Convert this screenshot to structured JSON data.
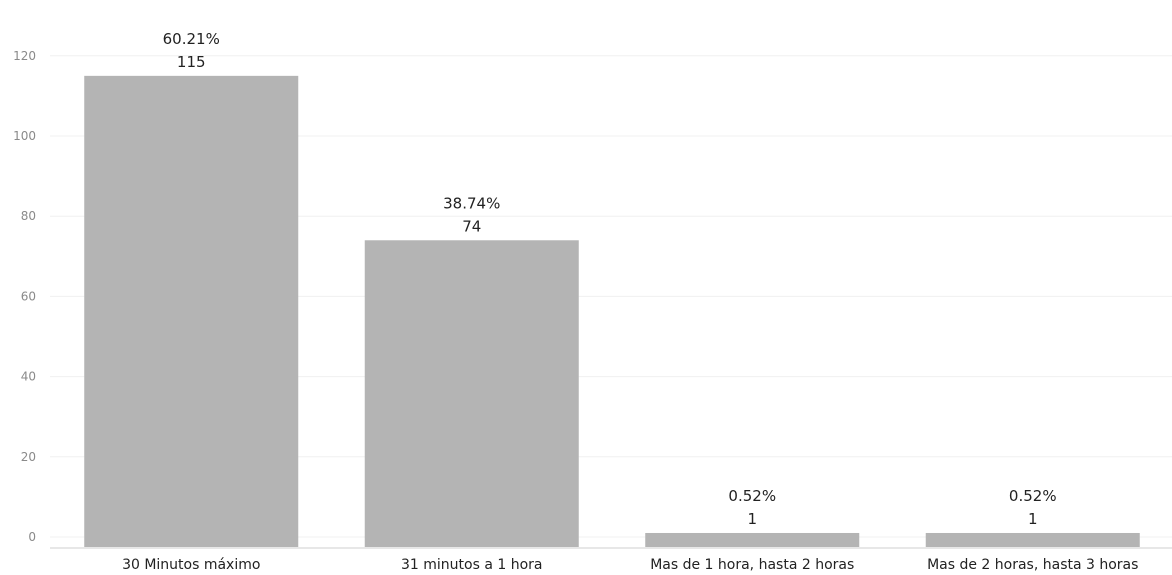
{
  "chart_data": {
    "type": "bar",
    "categories": [
      "30 Minutos máximo",
      "31 minutos a 1 hora",
      "Mas de 1 hora, hasta 2 horas",
      "Mas de 2 horas, hasta 3 horas"
    ],
    "values": [
      115,
      74,
      1,
      1
    ],
    "percent_labels": [
      "60.21%",
      "38.74%",
      "0.52%",
      "0.52%"
    ],
    "value_labels": [
      "115",
      "74",
      "1",
      "1"
    ],
    "y_ticks": [
      "0",
      "20",
      "40",
      "60",
      "80",
      "100",
      "120"
    ],
    "ylim": [
      0,
      130
    ],
    "grid": true,
    "bar_color": "#b4b4b4",
    "title": "",
    "xlabel": "",
    "ylabel": ""
  }
}
